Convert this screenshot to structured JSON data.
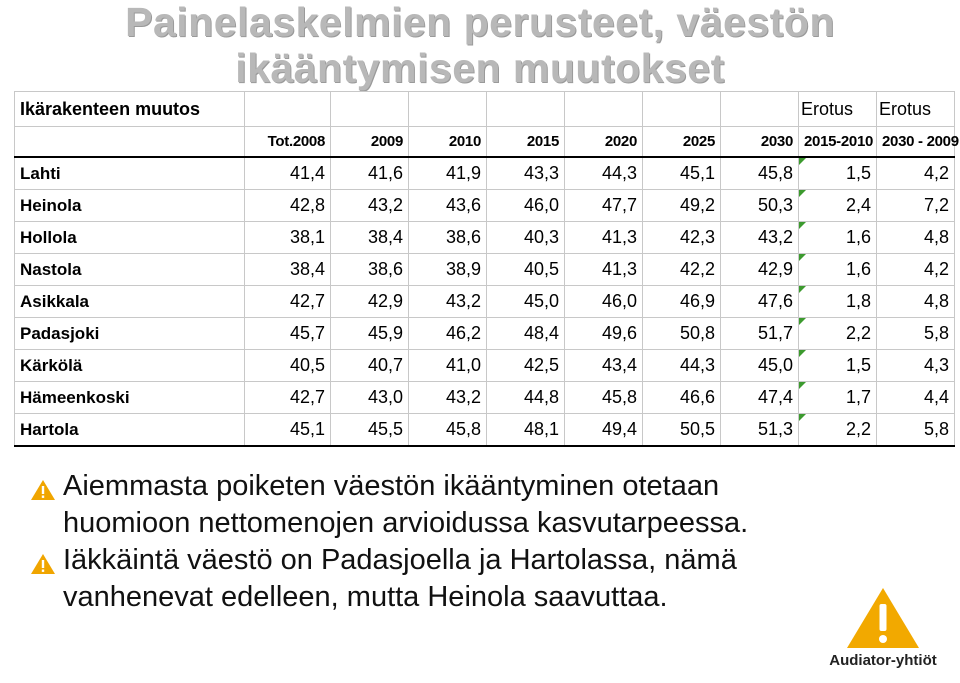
{
  "title": {
    "line1": "Painelaskelmien perusteet, väestön",
    "line2": "ikääntymisen muutokset"
  },
  "table": {
    "corner_label": "Ikärakenteen muutos",
    "erotus1_label": "Erotus",
    "erotus2_label": "Erotus",
    "columns": [
      "Tot.2008",
      "2009",
      "2010",
      "2015",
      "2020",
      "2025",
      "2030",
      "2015-2010",
      "2030 - 2009"
    ],
    "rows": [
      {
        "name": "Lahti",
        "values": [
          "41,4",
          "41,6",
          "41,9",
          "43,3",
          "44,3",
          "45,1",
          "45,8",
          "1,5",
          "4,2"
        ]
      },
      {
        "name": "Heinola",
        "values": [
          "42,8",
          "43,2",
          "43,6",
          "46,0",
          "47,7",
          "49,2",
          "50,3",
          "2,4",
          "7,2"
        ]
      },
      {
        "name": "Hollola",
        "values": [
          "38,1",
          "38,4",
          "38,6",
          "40,3",
          "41,3",
          "42,3",
          "43,2",
          "1,6",
          "4,8"
        ]
      },
      {
        "name": "Nastola",
        "values": [
          "38,4",
          "38,6",
          "38,9",
          "40,5",
          "41,3",
          "42,2",
          "42,9",
          "1,6",
          "4,2"
        ]
      },
      {
        "name": "Asikkala",
        "values": [
          "42,7",
          "42,9",
          "43,2",
          "45,0",
          "46,0",
          "46,9",
          "47,6",
          "1,8",
          "4,8"
        ]
      },
      {
        "name": "Padasjoki",
        "values": [
          "45,7",
          "45,9",
          "46,2",
          "48,4",
          "49,6",
          "50,8",
          "51,7",
          "2,2",
          "5,8"
        ]
      },
      {
        "name": "Kärkölä",
        "values": [
          "40,5",
          "40,7",
          "41,0",
          "42,5",
          "43,4",
          "44,3",
          "45,0",
          "1,5",
          "4,3"
        ]
      },
      {
        "name": "Hämeenkoski",
        "values": [
          "42,7",
          "43,0",
          "43,2",
          "44,8",
          "45,8",
          "46,6",
          "47,4",
          "1,7",
          "4,4"
        ]
      },
      {
        "name": "Hartola",
        "values": [
          "45,1",
          "45,5",
          "45,8",
          "48,1",
          "49,4",
          "50,5",
          "51,3",
          "2,2",
          "5,8"
        ]
      }
    ]
  },
  "bullets": [
    {
      "line1": "Aiemmasta poiketen väestön ikääntyminen otetaan",
      "line2": "huomioon nettomenojen arvioidussa kasvutarpeessa."
    },
    {
      "line1": "Iäkkäintä väestö on Padasjoella ja Hartolassa, nämä",
      "line2": "vanhenevat edelleen, mutta Heinola saavuttaa."
    }
  ],
  "logo": {
    "text": "Audiator-yhtiöt",
    "icon": "exclamation-triangle-logo"
  },
  "colors": {
    "title": "#b8b8b8",
    "accent": "#f0a500",
    "flag": "#3c9a2e"
  }
}
